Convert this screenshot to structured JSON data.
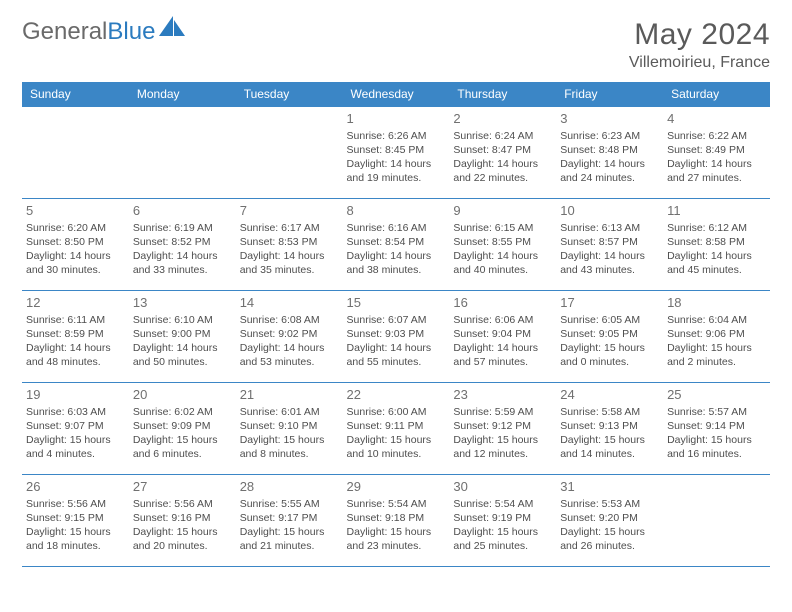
{
  "brand": {
    "general": "General",
    "blue": "Blue"
  },
  "title": "May 2024",
  "location": "Villemoirieu, France",
  "colors": {
    "header_bg": "#3b86c6",
    "header_fg": "#ffffff",
    "text": "#4e4e4e",
    "brand_blue": "#2b7bbf"
  },
  "weekdays": [
    "Sunday",
    "Monday",
    "Tuesday",
    "Wednesday",
    "Thursday",
    "Friday",
    "Saturday"
  ],
  "weeks": [
    [
      null,
      null,
      null,
      {
        "n": "1",
        "sr": "6:26 AM",
        "ss": "8:45 PM",
        "dl": "14 hours and 19 minutes."
      },
      {
        "n": "2",
        "sr": "6:24 AM",
        "ss": "8:47 PM",
        "dl": "14 hours and 22 minutes."
      },
      {
        "n": "3",
        "sr": "6:23 AM",
        "ss": "8:48 PM",
        "dl": "14 hours and 24 minutes."
      },
      {
        "n": "4",
        "sr": "6:22 AM",
        "ss": "8:49 PM",
        "dl": "14 hours and 27 minutes."
      }
    ],
    [
      {
        "n": "5",
        "sr": "6:20 AM",
        "ss": "8:50 PM",
        "dl": "14 hours and 30 minutes."
      },
      {
        "n": "6",
        "sr": "6:19 AM",
        "ss": "8:52 PM",
        "dl": "14 hours and 33 minutes."
      },
      {
        "n": "7",
        "sr": "6:17 AM",
        "ss": "8:53 PM",
        "dl": "14 hours and 35 minutes."
      },
      {
        "n": "8",
        "sr": "6:16 AM",
        "ss": "8:54 PM",
        "dl": "14 hours and 38 minutes."
      },
      {
        "n": "9",
        "sr": "6:15 AM",
        "ss": "8:55 PM",
        "dl": "14 hours and 40 minutes."
      },
      {
        "n": "10",
        "sr": "6:13 AM",
        "ss": "8:57 PM",
        "dl": "14 hours and 43 minutes."
      },
      {
        "n": "11",
        "sr": "6:12 AM",
        "ss": "8:58 PM",
        "dl": "14 hours and 45 minutes."
      }
    ],
    [
      {
        "n": "12",
        "sr": "6:11 AM",
        "ss": "8:59 PM",
        "dl": "14 hours and 48 minutes."
      },
      {
        "n": "13",
        "sr": "6:10 AM",
        "ss": "9:00 PM",
        "dl": "14 hours and 50 minutes."
      },
      {
        "n": "14",
        "sr": "6:08 AM",
        "ss": "9:02 PM",
        "dl": "14 hours and 53 minutes."
      },
      {
        "n": "15",
        "sr": "6:07 AM",
        "ss": "9:03 PM",
        "dl": "14 hours and 55 minutes."
      },
      {
        "n": "16",
        "sr": "6:06 AM",
        "ss": "9:04 PM",
        "dl": "14 hours and 57 minutes."
      },
      {
        "n": "17",
        "sr": "6:05 AM",
        "ss": "9:05 PM",
        "dl": "15 hours and 0 minutes."
      },
      {
        "n": "18",
        "sr": "6:04 AM",
        "ss": "9:06 PM",
        "dl": "15 hours and 2 minutes."
      }
    ],
    [
      {
        "n": "19",
        "sr": "6:03 AM",
        "ss": "9:07 PM",
        "dl": "15 hours and 4 minutes."
      },
      {
        "n": "20",
        "sr": "6:02 AM",
        "ss": "9:09 PM",
        "dl": "15 hours and 6 minutes."
      },
      {
        "n": "21",
        "sr": "6:01 AM",
        "ss": "9:10 PM",
        "dl": "15 hours and 8 minutes."
      },
      {
        "n": "22",
        "sr": "6:00 AM",
        "ss": "9:11 PM",
        "dl": "15 hours and 10 minutes."
      },
      {
        "n": "23",
        "sr": "5:59 AM",
        "ss": "9:12 PM",
        "dl": "15 hours and 12 minutes."
      },
      {
        "n": "24",
        "sr": "5:58 AM",
        "ss": "9:13 PM",
        "dl": "15 hours and 14 minutes."
      },
      {
        "n": "25",
        "sr": "5:57 AM",
        "ss": "9:14 PM",
        "dl": "15 hours and 16 minutes."
      }
    ],
    [
      {
        "n": "26",
        "sr": "5:56 AM",
        "ss": "9:15 PM",
        "dl": "15 hours and 18 minutes."
      },
      {
        "n": "27",
        "sr": "5:56 AM",
        "ss": "9:16 PM",
        "dl": "15 hours and 20 minutes."
      },
      {
        "n": "28",
        "sr": "5:55 AM",
        "ss": "9:17 PM",
        "dl": "15 hours and 21 minutes."
      },
      {
        "n": "29",
        "sr": "5:54 AM",
        "ss": "9:18 PM",
        "dl": "15 hours and 23 minutes."
      },
      {
        "n": "30",
        "sr": "5:54 AM",
        "ss": "9:19 PM",
        "dl": "15 hours and 25 minutes."
      },
      {
        "n": "31",
        "sr": "5:53 AM",
        "ss": "9:20 PM",
        "dl": "15 hours and 26 minutes."
      },
      null
    ]
  ],
  "labels": {
    "sunrise": "Sunrise:",
    "sunset": "Sunset:",
    "daylight": "Daylight:"
  }
}
